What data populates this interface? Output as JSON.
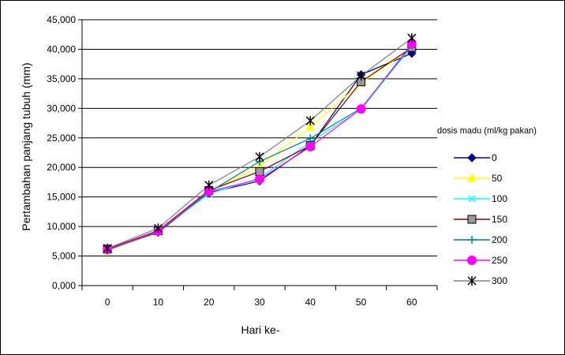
{
  "chart_data": {
    "type": "line",
    "title": "",
    "xlabel": "Hari ke-",
    "ylabel": "Pertambahan panjang tubuh (mm)",
    "categories": [
      "0",
      "10",
      "20",
      "30",
      "40",
      "50",
      "60"
    ],
    "ylim": [
      0,
      45000
    ],
    "yticks": [
      "0,000",
      "5,000",
      "10,000",
      "15,000",
      "20,000",
      "25,000",
      "30,000",
      "35,000",
      "40,000",
      "45,000"
    ],
    "grid": true,
    "legend_title": "dosis madu (ml/kg pakan)",
    "legend_position": "right",
    "series": [
      {
        "name": "0",
        "color": "#000080",
        "marker": "diamond",
        "values": [
          6000,
          9000,
          15700,
          17700,
          23700,
          35700,
          39300
        ]
      },
      {
        "name": "50",
        "color": "#FFFF00",
        "marker": "triangle",
        "values": [
          5900,
          9100,
          15800,
          20200,
          26800,
          34300,
          40200
        ]
      },
      {
        "name": "100",
        "color": "#00FFFF",
        "marker": "x",
        "values": [
          6100,
          9200,
          15500,
          18200,
          24300,
          29800,
          40500
        ]
      },
      {
        "name": "150",
        "color": "#800000",
        "marker": "square",
        "values": [
          6200,
          9300,
          16100,
          19300,
          23700,
          34500,
          40300
        ]
      },
      {
        "name": "200",
        "color": "#008080",
        "marker": "plus",
        "values": [
          6000,
          9100,
          15800,
          21000,
          24900,
          30000,
          40700
        ]
      },
      {
        "name": "250",
        "color": "#FF00FF",
        "marker": "circle",
        "values": [
          6100,
          9200,
          15900,
          18000,
          23500,
          29900,
          40900
        ]
      },
      {
        "name": "300",
        "color": "#808080",
        "marker": "asterisk",
        "values": [
          6300,
          9700,
          17000,
          21800,
          27900,
          35500,
          41900
        ]
      }
    ]
  }
}
